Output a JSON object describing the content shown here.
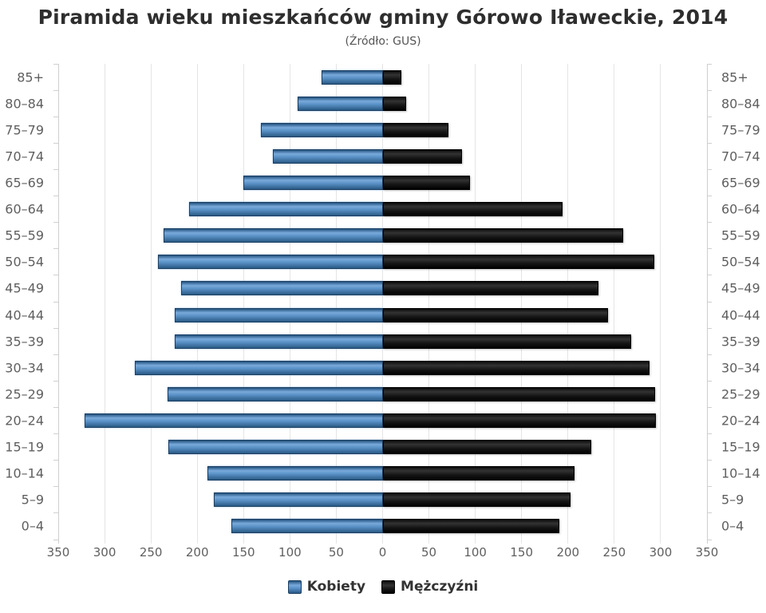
{
  "chart_data": {
    "type": "bar",
    "variant": "population-pyramid",
    "title": "Piramida wieku mieszkańców gminy Górowo Iławeckie, 2014",
    "subtitle": "(Źródło: GUS)",
    "categories": [
      "85+",
      "80–84",
      "75–79",
      "70–74",
      "65–69",
      "60–64",
      "55–59",
      "50–54",
      "45–49",
      "40–44",
      "35–39",
      "30–34",
      "25–29",
      "20–24",
      "15–19",
      "10–14",
      "5–9",
      "0–4"
    ],
    "series": [
      {
        "name": "Kobiety",
        "side": "left",
        "color": "#4f8bc2",
        "values": [
          66,
          92,
          131,
          118,
          150,
          209,
          236,
          242,
          217,
          224,
          224,
          267,
          232,
          322,
          231,
          189,
          182,
          163
        ]
      },
      {
        "name": "Mężczyźni",
        "side": "right",
        "color": "#1a1a1a",
        "values": [
          20,
          25,
          71,
          86,
          94,
          194,
          260,
          293,
          233,
          243,
          268,
          288,
          294,
          295,
          225,
          207,
          203,
          191
        ]
      }
    ],
    "x_ticks": [
      "350",
      "300",
      "250",
      "200",
      "150",
      "100",
      "50",
      "0",
      "50",
      "100",
      "150",
      "200",
      "250",
      "300",
      "350"
    ],
    "axis_max": 350,
    "grid": true,
    "gridline_color": "#e5e5e5",
    "legend_position": "bottom"
  }
}
